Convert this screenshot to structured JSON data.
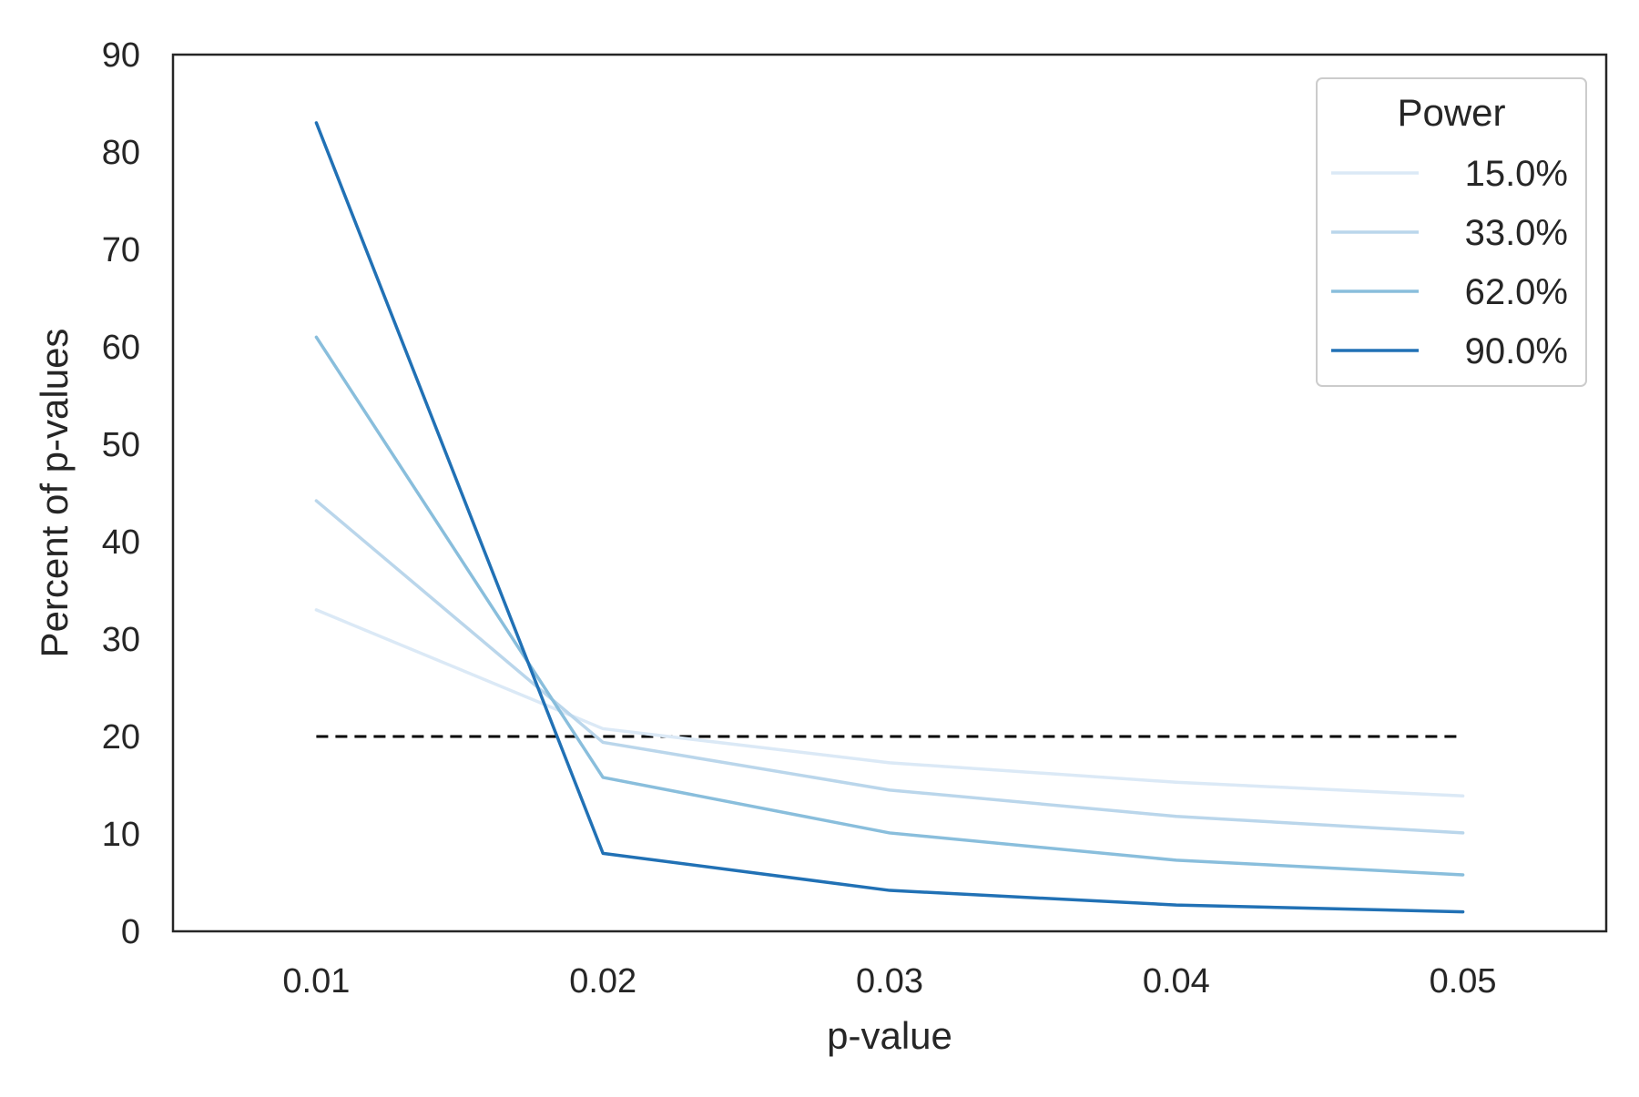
{
  "chart_data": {
    "type": "line",
    "title": "",
    "xlabel": "p-value",
    "ylabel": "Percent of p-values",
    "x": [
      0.01,
      0.02,
      0.03,
      0.04,
      0.05
    ],
    "x_ticks": [
      "0.01",
      "0.02",
      "0.03",
      "0.04",
      "0.05"
    ],
    "xlim": [
      0.005,
      0.055
    ],
    "y_ticks": [
      "0",
      "10",
      "20",
      "30",
      "40",
      "50",
      "60",
      "70",
      "80",
      "90"
    ],
    "ylim": [
      0,
      90
    ],
    "grid": false,
    "legend": {
      "title": "Power",
      "placement": "top-right"
    },
    "series": [
      {
        "name": "15.0%",
        "color": "#dbe9f6",
        "values": [
          33.0,
          20.8,
          17.3,
          15.3,
          13.9
        ]
      },
      {
        "name": "33.0%",
        "color": "#bad6eb",
        "values": [
          44.2,
          19.4,
          14.5,
          11.8,
          10.1
        ]
      },
      {
        "name": "62.0%",
        "color": "#89bedc",
        "values": [
          61.0,
          15.8,
          10.1,
          7.3,
          5.8
        ]
      },
      {
        "name": "90.0%",
        "color": "#2171b5",
        "values": [
          83.0,
          8.0,
          4.2,
          2.7,
          2.0
        ]
      }
    ],
    "reference_line": {
      "y": 20,
      "x_range": [
        0.01,
        0.05
      ],
      "style": "dashed",
      "color": "#000000"
    }
  }
}
